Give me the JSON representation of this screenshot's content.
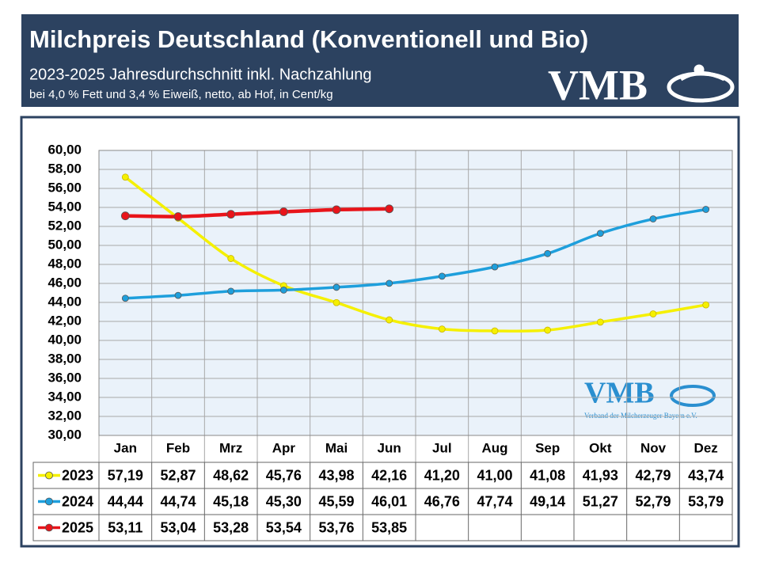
{
  "chart_data": {
    "type": "line",
    "title": "Milchpreis Deutschland (Konventionell und Bio)",
    "subtitle": "2023-2025 Jahresdurchschnitt inkl. Nachzahlung",
    "note": "bei 4,0 % Fett und 3,4 % Eiweiß, netto, ab Hof, in Cent/kg",
    "logo": "VMB",
    "watermark": {
      "text": "VMB",
      "subtext": "Verband der Milcherzeuger Bayern e.V."
    },
    "categories": [
      "Jan",
      "Feb",
      "Mrz",
      "Apr",
      "Mai",
      "Jun",
      "Jul",
      "Aug",
      "Sep",
      "Okt",
      "Nov",
      "Dez"
    ],
    "series": [
      {
        "name": "2023",
        "color": "#f5f000",
        "values": [
          57.19,
          52.87,
          48.62,
          45.76,
          43.98,
          42.16,
          41.2,
          41.0,
          41.08,
          41.93,
          42.79,
          43.74
        ],
        "value_labels": [
          "57,19",
          "52,87",
          "48,62",
          "45,76",
          "43,98",
          "42,16",
          "41,20",
          "41,00",
          "41,08",
          "41,93",
          "42,79",
          "43,74"
        ]
      },
      {
        "name": "2024",
        "color": "#1e9fdc",
        "values": [
          44.44,
          44.74,
          45.18,
          45.3,
          45.59,
          46.01,
          46.76,
          47.74,
          49.14,
          51.27,
          52.79,
          53.79
        ],
        "value_labels": [
          "44,44",
          "44,74",
          "45,18",
          "45,30",
          "45,59",
          "46,01",
          "46,76",
          "47,74",
          "49,14",
          "51,27",
          "52,79",
          "53,79"
        ]
      },
      {
        "name": "2025",
        "color": "#e8141a",
        "values": [
          53.11,
          53.04,
          53.28,
          53.54,
          53.76,
          53.85,
          null,
          null,
          null,
          null,
          null,
          null
        ],
        "value_labels": [
          "53,11",
          "53,04",
          "53,28",
          "53,54",
          "53,76",
          "53,85",
          null,
          null,
          null,
          null,
          null,
          null
        ]
      }
    ],
    "ylim": [
      30,
      60
    ],
    "yticks": [
      {
        "value": 30,
        "label": "30,00"
      },
      {
        "value": 32,
        "label": "32,00"
      },
      {
        "value": 34,
        "label": "34,00"
      },
      {
        "value": 36,
        "label": "36,00"
      },
      {
        "value": 38,
        "label": "38,00"
      },
      {
        "value": 40,
        "label": "40,00"
      },
      {
        "value": 42,
        "label": "42,00"
      },
      {
        "value": 44,
        "label": "44,00"
      },
      {
        "value": 46,
        "label": "46,00"
      },
      {
        "value": 48,
        "label": "48,00"
      },
      {
        "value": 50,
        "label": "50,00"
      },
      {
        "value": 52,
        "label": "52,00"
      },
      {
        "value": 54,
        "label": "54,00"
      },
      {
        "value": 56,
        "label": "56,00"
      },
      {
        "value": 58,
        "label": "58,00"
      },
      {
        "value": 60,
        "label": "60,00"
      }
    ],
    "grid": true
  }
}
